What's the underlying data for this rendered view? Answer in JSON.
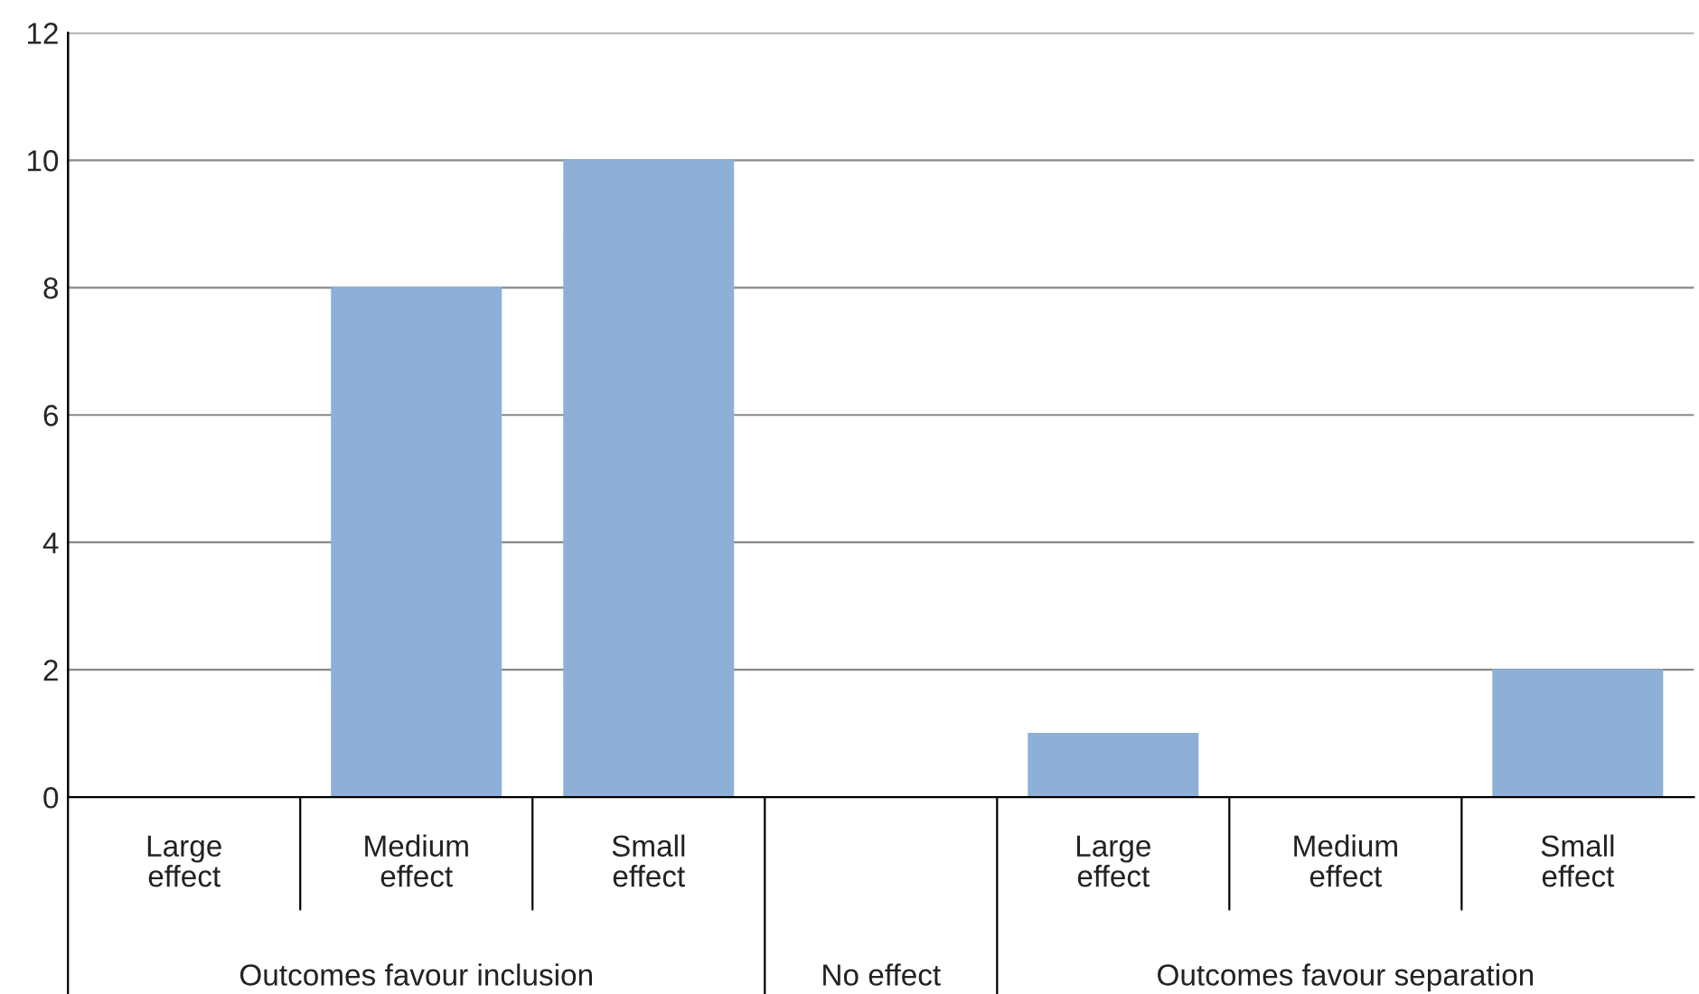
{
  "chart_data": {
    "type": "bar",
    "categories": [
      "Large effect",
      "Medium effect",
      "Small effect",
      null,
      "Large effect",
      "Medium effect",
      "Small effect"
    ],
    "values": [
      0,
      8,
      10,
      0,
      1,
      0,
      2
    ],
    "color": "#8eb0d8",
    "ylim": [
      0,
      12
    ],
    "yticks": [
      0,
      2,
      4,
      6,
      8,
      10,
      12
    ],
    "grid": "y",
    "annotations": [
      "Outcomes favour inclusion",
      "No effect",
      "Outcomes favour separation"
    ]
  }
}
